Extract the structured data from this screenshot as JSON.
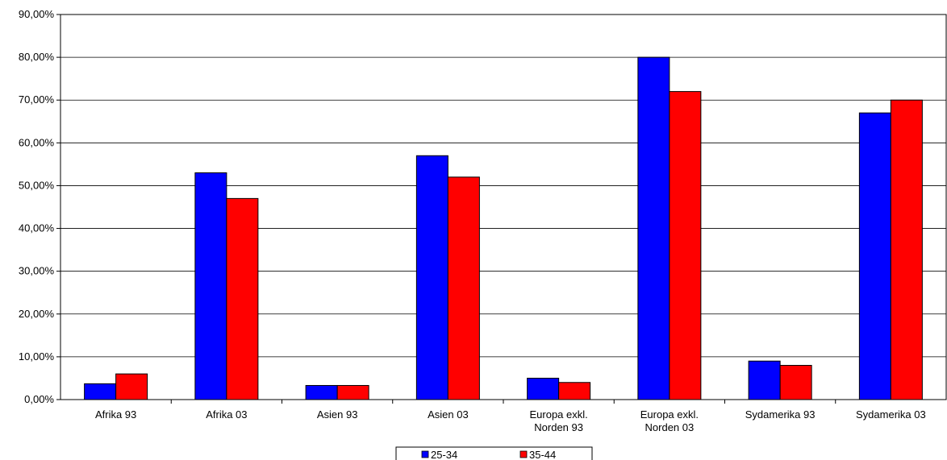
{
  "chart_data": {
    "type": "bar",
    "categories": [
      [
        "Afrika 93"
      ],
      [
        "Afrika 03"
      ],
      [
        "Asien 93"
      ],
      [
        "Asien 03"
      ],
      [
        "Europa exkl.",
        "Norden 93"
      ],
      [
        "Europa exkl.",
        "Norden 03"
      ],
      [
        "Sydamerika 93"
      ],
      [
        "Sydamerika 03"
      ]
    ],
    "series": [
      {
        "name": "25-34",
        "color": "#0000FF",
        "values": [
          3.7,
          53,
          3.3,
          57,
          5,
          80,
          9,
          67
        ]
      },
      {
        "name": "35-44",
        "color": "#FF0000",
        "values": [
          6,
          47,
          3.3,
          52,
          4,
          72,
          8,
          70
        ]
      }
    ],
    "ylim": [
      0,
      90
    ],
    "ytick_step": 10,
    "ytick_labels": [
      "0,00%",
      "10,00%",
      "20,00%",
      "30,00%",
      "40,00%",
      "50,00%",
      "60,00%",
      "70,00%",
      "80,00%",
      "90,00%"
    ],
    "grid": true,
    "legend": "bottom-center"
  }
}
